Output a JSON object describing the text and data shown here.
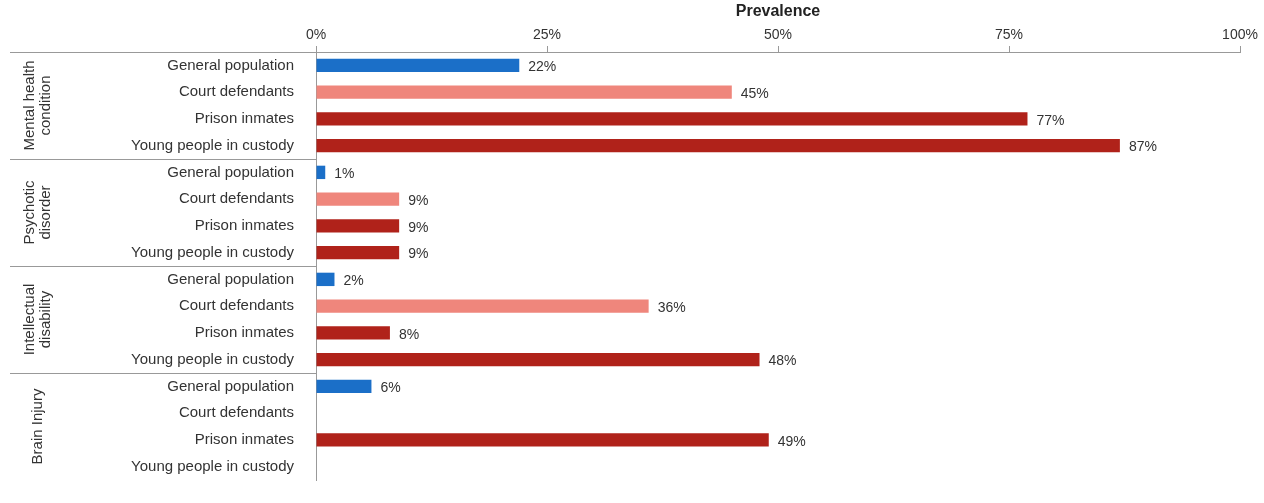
{
  "chart_data": {
    "type": "bar",
    "orientation": "horizontal",
    "xlabel": "Prevalence",
    "categories": [
      "General population",
      "Court defendants",
      "Prison inmates",
      "Young people in custody",
      "General population",
      "Court defendants",
      "Prison inmates",
      "Young people in custody",
      "General population",
      "Court defendants",
      "Prison inmates",
      "Young people in custody",
      "General population",
      "Court defendants",
      "Prison inmates",
      "Young people in custody"
    ],
    "values": [
      22,
      45,
      77,
      87,
      1,
      9,
      9,
      9,
      2,
      36,
      8,
      48,
      6,
      null,
      49,
      null
    ],
    "value_labels": [
      "22%",
      "45%",
      "77%",
      "87%",
      "1%",
      "9%",
      "9%",
      "9%",
      "2%",
      "36%",
      "8%",
      "48%",
      "6%",
      null,
      "49%",
      null
    ],
    "colors": [
      "#1b6fc8",
      "#ef867c",
      "#b0221a",
      "#b0221a",
      "#1b6fc8",
      "#ef867c",
      "#b0221a",
      "#b0221a",
      "#1b6fc8",
      "#ef867c",
      "#b0221a",
      "#b0221a",
      "#1b6fc8",
      "#ef867c",
      "#b0221a",
      "#b0221a"
    ],
    "xlim": [
      0,
      100
    ],
    "xticks": [
      {
        "value": 0,
        "label": "0%"
      },
      {
        "value": 25,
        "label": "25%"
      },
      {
        "value": 50,
        "label": "50%"
      },
      {
        "value": 75,
        "label": "75%"
      },
      {
        "value": 100,
        "label": "100%"
      }
    ],
    "annotations": [
      "Mental health condition",
      "Psychotic disorder",
      "Intellectual disability",
      "Brain Injury"
    ],
    "grid": false,
    "legend": false
  }
}
